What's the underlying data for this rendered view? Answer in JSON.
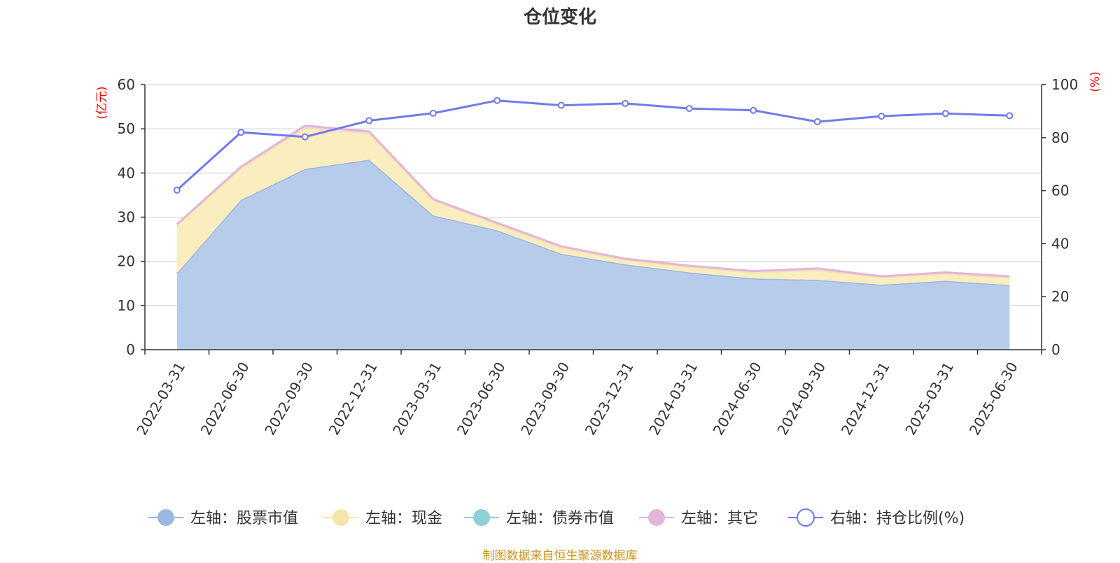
{
  "chart_data": {
    "type": "area",
    "title": "仓位变化",
    "x": [
      "2022-03-31",
      "2022-06-30",
      "2022-09-30",
      "2022-12-31",
      "2023-03-31",
      "2023-06-30",
      "2023-09-30",
      "2023-12-31",
      "2024-03-31",
      "2024-06-30",
      "2024-09-30",
      "2024-12-31",
      "2025-03-31",
      "2025-06-30"
    ],
    "left_axis": {
      "unit": "(亿元)",
      "ylim": [
        0,
        60
      ],
      "ticks": [
        0,
        10,
        20,
        30,
        40,
        50,
        60
      ]
    },
    "right_axis": {
      "unit": "(%)",
      "ylim": [
        0,
        100
      ],
      "ticks": [
        0,
        20,
        40,
        60,
        80,
        100
      ]
    },
    "grid": true,
    "stacked": true,
    "series": [
      {
        "name": "左轴：股票市值",
        "axis": "left",
        "kind": "area",
        "color": "#9bb8e0",
        "fill": "#b7cceb",
        "values": [
          17.3,
          33.9,
          40.9,
          43.0,
          30.4,
          27.0,
          21.7,
          19.3,
          17.5,
          16.1,
          15.8,
          14.7,
          15.6,
          14.6
        ]
      },
      {
        "name": "左轴：现金",
        "axis": "left",
        "kind": "area",
        "color": "#f5e5a8",
        "fill": "#faedbf",
        "values": [
          10.9,
          7.2,
          9.3,
          6.0,
          3.4,
          1.4,
          1.4,
          1.0,
          1.3,
          1.4,
          2.2,
          1.7,
          1.6,
          1.7
        ]
      },
      {
        "name": "左轴：债券市值",
        "axis": "left",
        "kind": "area",
        "color": "#8fd0d6",
        "fill": "#a9dde1",
        "values": [
          0,
          0,
          0,
          0,
          0,
          0,
          0,
          0,
          0,
          0,
          0,
          0,
          0,
          0
        ]
      },
      {
        "name": "左轴：其它",
        "axis": "left",
        "kind": "area",
        "color": "#e3b5d8",
        "fill": "#f1d6ec",
        "values": [
          0.2,
          0.3,
          0.5,
          0.4,
          0.3,
          0.3,
          0.3,
          0.3,
          0.2,
          0.3,
          0.4,
          0.2,
          0.3,
          0.3
        ]
      },
      {
        "name": "右轴：持仓比例(%)",
        "axis": "right",
        "kind": "line",
        "color": "#7279ee",
        "values": [
          60.2,
          82.0,
          80.3,
          86.4,
          89.2,
          94.0,
          92.2,
          92.9,
          91.0,
          90.3,
          86.0,
          88.1,
          89.1,
          88.3
        ]
      }
    ],
    "legend_position": "bottom"
  },
  "source": "制图数据来自恒生聚源数据库"
}
